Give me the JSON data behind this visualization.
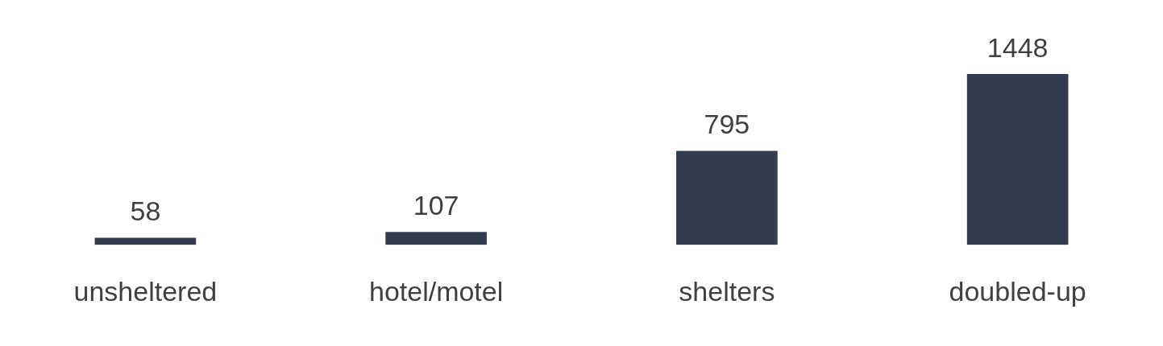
{
  "chart_data": {
    "type": "bar",
    "categories": [
      "unsheltered",
      "hotel/motel",
      "shelters",
      "doubled-up"
    ],
    "values": [
      58,
      107,
      795,
      1448
    ],
    "color": "#333d4f",
    "data_labels": true
  }
}
